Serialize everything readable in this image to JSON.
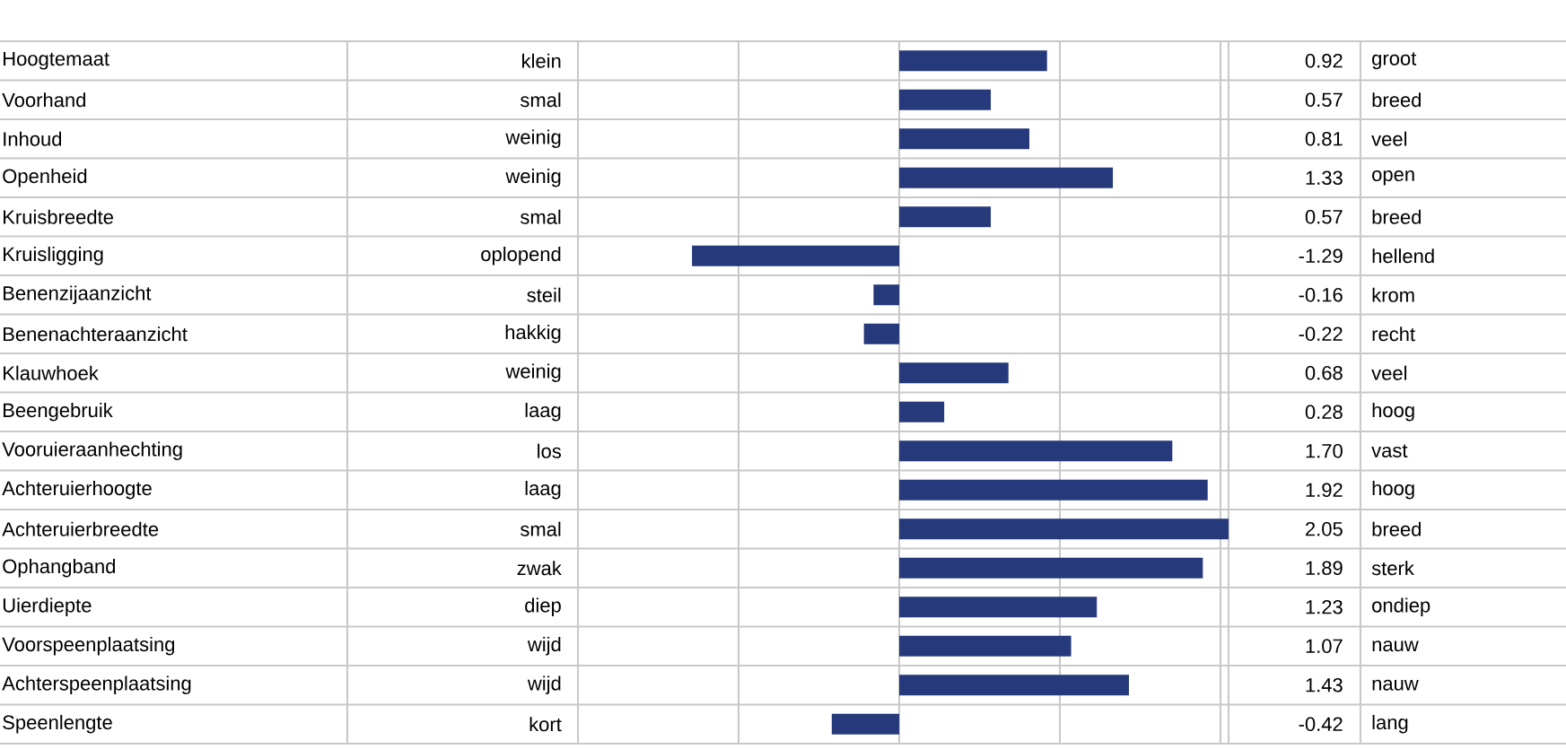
{
  "chart_data": {
    "type": "bar",
    "orientation": "horizontal",
    "categories": [
      "Hoogtemaat",
      "Voorhand",
      "Inhoud",
      "Openheid",
      "Kruisbreedte",
      "Kruisligging",
      "Benenzijaanzicht",
      "Benenachteraanzicht",
      "Klauwhoek",
      "Beengebruik",
      "Vooruieraanhechting",
      "Achteruierhoogte",
      "Achteruierbreedte",
      "Ophangband",
      "Uierdiepte",
      "Voorspeenplaatsing",
      "Achterspeenplaatsing",
      "Speenlengte"
    ],
    "values": [
      0.92,
      0.57,
      0.81,
      1.33,
      0.57,
      -1.29,
      -0.16,
      -0.22,
      0.68,
      0.28,
      1.7,
      1.92,
      2.05,
      1.89,
      1.23,
      1.07,
      1.43,
      -0.42
    ],
    "value_labels": [
      "0.92",
      "0.57",
      "0.81",
      "1.33",
      "0.57",
      "-1.29",
      "-0.16",
      "-0.22",
      "0.68",
      "0.28",
      "1.70",
      "1.92",
      "2.05",
      "1.89",
      "1.23",
      "1.07",
      "1.43",
      "-0.42"
    ],
    "color": "#26397a",
    "xlim": [
      -2,
      2.05
    ],
    "xticks": [
      {
        "value": -2,
        "label": null
      },
      {
        "value": -1,
        "label": null
      },
      {
        "value": 0,
        "label": null
      },
      {
        "value": 1,
        "label": null
      },
      {
        "value": 2,
        "label": null
      }
    ],
    "grid": "x",
    "annotations": [
      "klein",
      "smal",
      "weinig",
      "weinig",
      "smal",
      "oplopend",
      "steil",
      "hakkig",
      "weinig",
      "laag",
      "los",
      "laag",
      "smal",
      "zwak",
      "diep",
      "wijd",
      "wijd",
      "kort",
      "groot",
      "breed",
      "veel",
      "open",
      "breed",
      "hellend",
      "krom",
      "recht",
      "veel",
      "hoog",
      "vast",
      "hoog",
      "breed",
      "sterk",
      "ondiep",
      "nauw",
      "nauw",
      "lang"
    ]
  }
}
